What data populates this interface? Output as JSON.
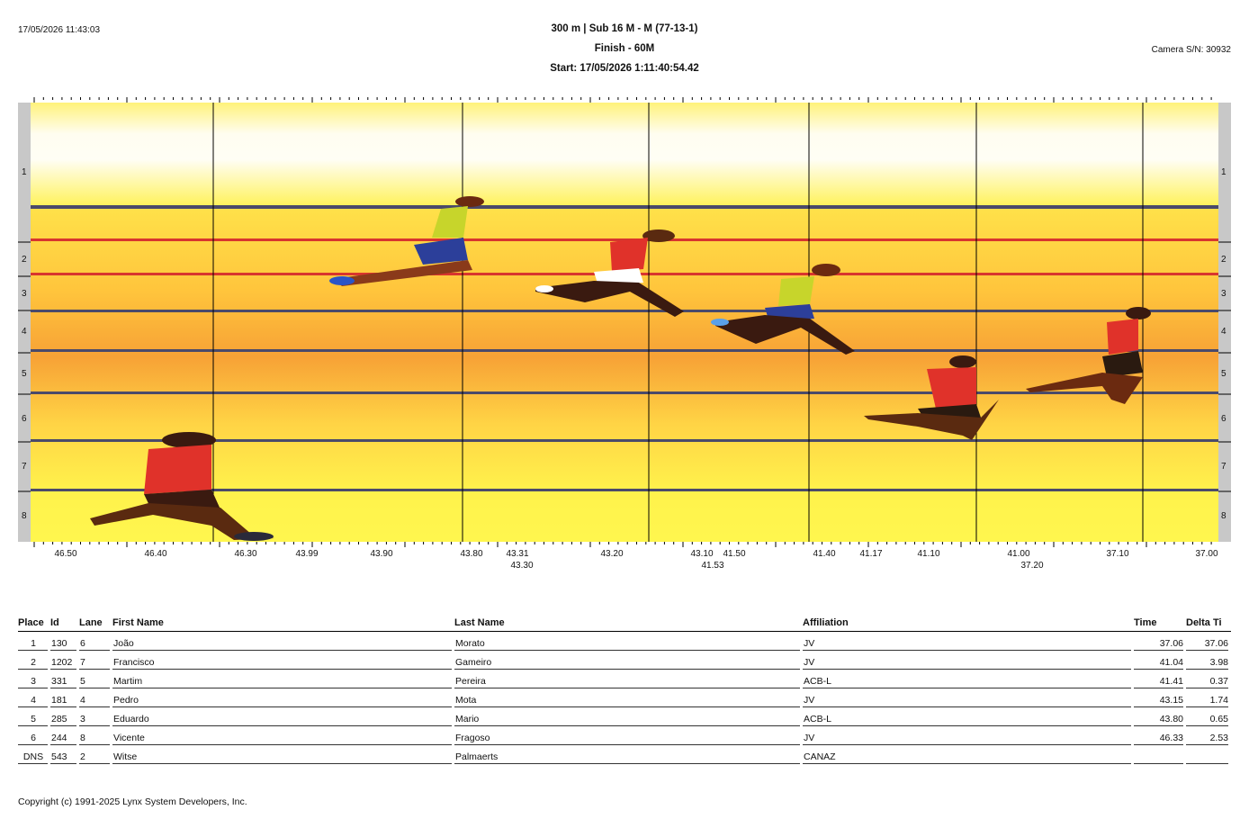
{
  "header": {
    "timestamp": "17/05/2026 11:43:03",
    "event_title": "300 m | Sub 16 M - M (77-13-1)",
    "finish_label": "Finish - 60M",
    "start_label": "Start: 17/05/2026 1:11:40:54.42",
    "camera": "Camera S/N: 30932"
  },
  "photo": {
    "lane_numbers": [
      "1",
      "2",
      "3",
      "4",
      "5",
      "6",
      "7",
      "8"
    ],
    "time_labels_row1": [
      "46.50",
      "46.40",
      "46.30",
      "43.99",
      "43.90",
      "43.80",
      "43.31",
      "43.20",
      "43.10",
      "41.50",
      "41.40",
      "41.17",
      "41.10",
      "41.00",
      "37.10",
      "37.00"
    ],
    "time_labels_row2": [
      "43.30",
      "41.53",
      "37.20"
    ],
    "colors": {
      "sky": "#fffde8",
      "track_light": "#fff04a",
      "track_mid": "#ffc83a",
      "track_dark": "#f5a033",
      "lane_line": "#4a4a6a",
      "red_line": "#d8352e",
      "border": "#c8c8c8"
    }
  },
  "table": {
    "headers": {
      "place": "Place",
      "id": "Id",
      "lane": "Lane",
      "first_name": "First Name",
      "last_name": "Last Name",
      "affiliation": "Affiliation",
      "time": "Time",
      "delta": "Delta Ti"
    },
    "rows": [
      {
        "place": "1",
        "id": "130",
        "lane": "6",
        "first": "João",
        "last": "Morato",
        "aff": "JV",
        "time": "37.06",
        "delta": "37.06"
      },
      {
        "place": "2",
        "id": "1202",
        "lane": "7",
        "first": "Francisco",
        "last": "Gameiro",
        "aff": "JV",
        "time": "41.04",
        "delta": "3.98"
      },
      {
        "place": "3",
        "id": "331",
        "lane": "5",
        "first": "Martim",
        "last": "Pereira",
        "aff": "ACB-L",
        "time": "41.41",
        "delta": "0.37"
      },
      {
        "place": "4",
        "id": "181",
        "lane": "4",
        "first": "Pedro",
        "last": "Mota",
        "aff": "JV",
        "time": "43.15",
        "delta": "1.74"
      },
      {
        "place": "5",
        "id": "285",
        "lane": "3",
        "first": "Eduardo",
        "last": "Mario",
        "aff": "ACB-L",
        "time": "43.80",
        "delta": "0.65"
      },
      {
        "place": "6",
        "id": "244",
        "lane": "8",
        "first": "Vicente",
        "last": "Fragoso",
        "aff": "JV",
        "time": "46.33",
        "delta": "2.53"
      },
      {
        "place": "DNS",
        "id": "543",
        "lane": "2",
        "first": "Witse",
        "last": "Palmaerts",
        "aff": "CANAZ",
        "time": "",
        "delta": ""
      }
    ]
  },
  "footer": {
    "copyright": "Copyright (c) 1991-2025 Lynx System Developers, Inc."
  }
}
